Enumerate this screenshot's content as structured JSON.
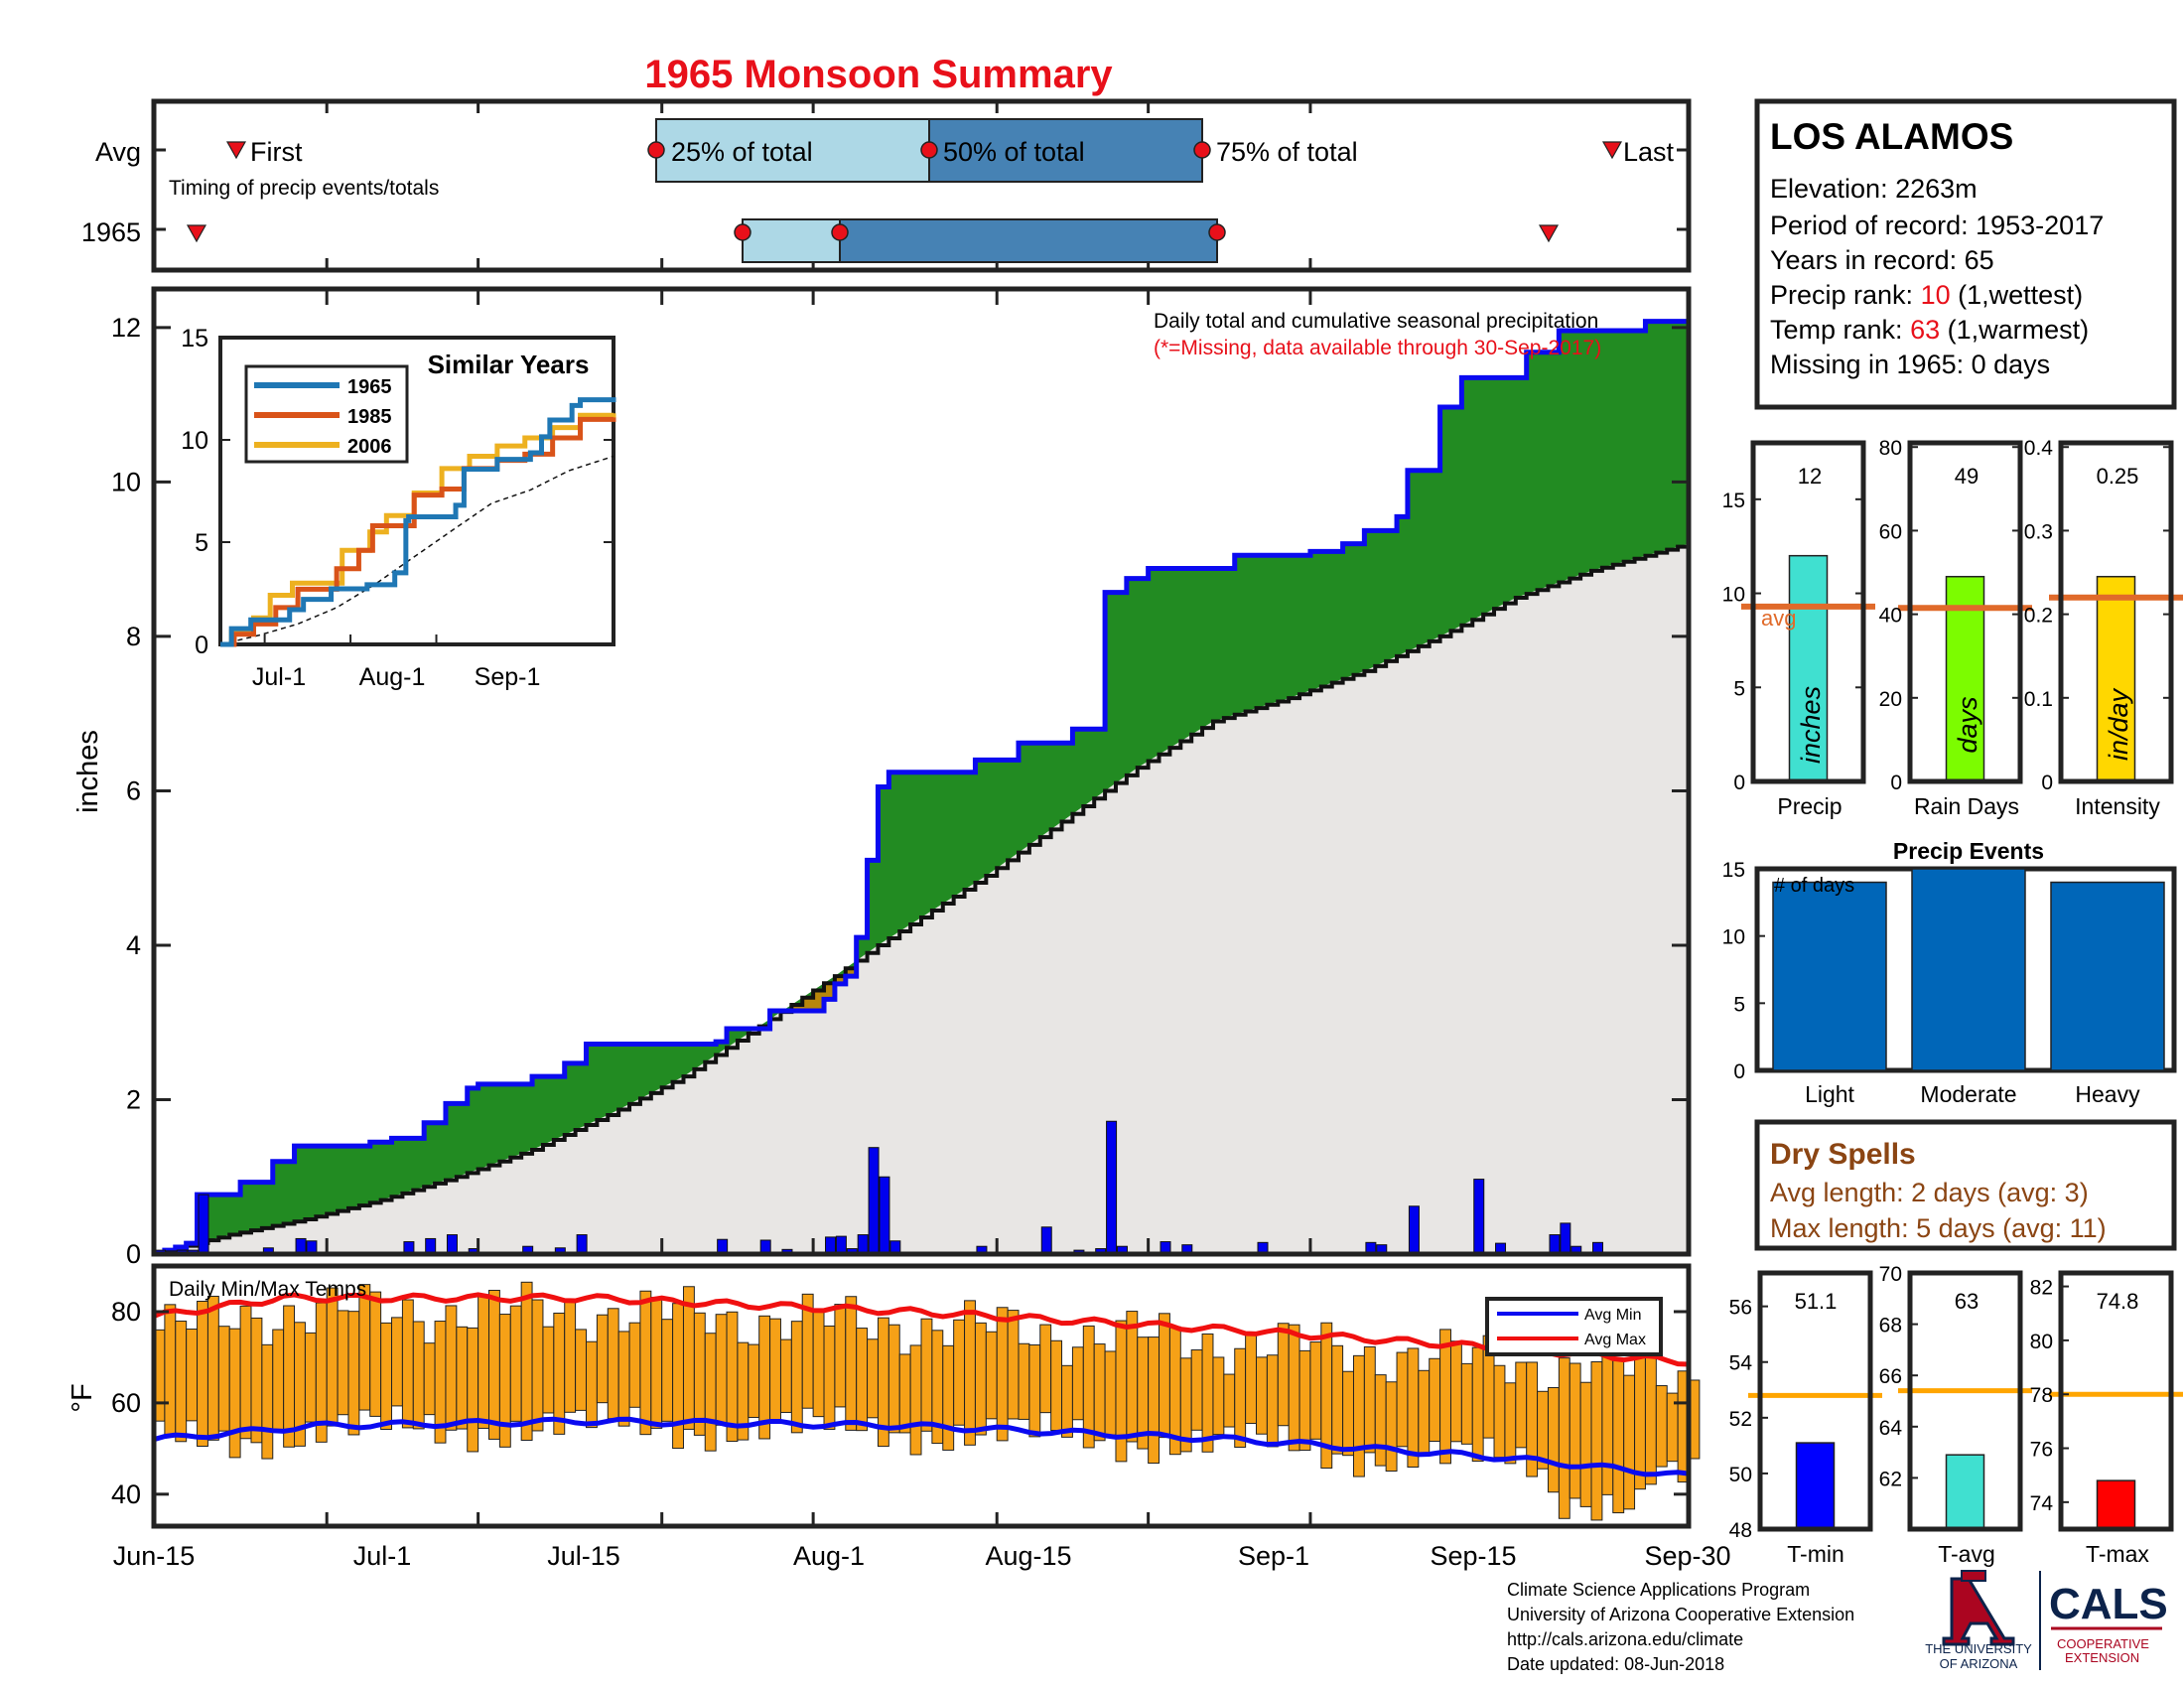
{
  "title": "1965 Monsoon Summary",
  "timing": {
    "avg_label": "Avg",
    "year_label": "1965",
    "caption": "Timing of precip events/totals",
    "first_label": "First",
    "last_label": "Last",
    "q25_label": "25% of total",
    "q50_label": "50% of total",
    "q75_label": "75% of total"
  },
  "main": {
    "ylabel": "inches",
    "title_line1": "Daily total and cumulative seasonal precipitation",
    "title_line2": "(*=Missing, data available through 30-Sep-2017)"
  },
  "inset": {
    "title": "Similar Years",
    "legend": [
      "1965",
      "1985",
      "2006"
    ],
    "x_ticks": [
      "Jul-1",
      "Aug-1",
      "Sep-1"
    ]
  },
  "temps": {
    "label": "Daily Min/Max Temps",
    "ylabel": "°F",
    "legend_min": "Avg Min",
    "legend_max": "Avg Max"
  },
  "x_ticks": [
    "Jun-15",
    "Jul-1",
    "Jul-15",
    "Aug-1",
    "Aug-15",
    "Sep-1",
    "Sep-15",
    "Sep-30"
  ],
  "station": {
    "name": "LOS ALAMOS",
    "elevation": "Elevation: 2263m",
    "period": "Period of record: 1953-2017",
    "years": "Years in record: 65",
    "precip_rank_pre": "Precip rank: ",
    "precip_rank_val": "10",
    "precip_rank_post": " (1,wettest)",
    "temp_rank_pre": "Temp rank: ",
    "temp_rank_val": "63",
    "temp_rank_post": " (1,warmest)",
    "missing": "Missing in 1965: 0 days"
  },
  "summary_bars": [
    {
      "label": "Precip",
      "value_text": "12",
      "unit": "inches",
      "color": "#40E0D0",
      "value": 12,
      "avg": 9.3,
      "ylim": [
        0,
        18
      ],
      "ticks": [
        "0",
        "5",
        "10",
        "15"
      ],
      "avg_text": "avg"
    },
    {
      "label": "Rain Days",
      "value_text": "49",
      "unit": "days",
      "color": "#7CFC00",
      "value": 49,
      "avg": 41.5,
      "ylim": [
        0,
        81
      ],
      "ticks": [
        "0",
        "20",
        "40",
        "60",
        "80"
      ]
    },
    {
      "label": "Intensity",
      "value_text": "0.25",
      "unit": "in/day",
      "color": "#FFD700",
      "value": 0.245,
      "avg": 0.22,
      "ylim": [
        0,
        0.405
      ],
      "ticks": [
        "0",
        "0.1",
        "0.2",
        "0.3",
        "0.4"
      ]
    }
  ],
  "precip_events": {
    "title": "Precip Events",
    "ylabel": "# of days",
    "categories": [
      "Light",
      "Moderate",
      "Heavy"
    ],
    "values": [
      14,
      15,
      14
    ],
    "ylim": [
      0,
      15
    ],
    "ticks": [
      "0",
      "5",
      "10",
      "15"
    ]
  },
  "dry_spells": {
    "title": "Dry Spells",
    "avg_length": "Avg length: 2 days (avg: 3)",
    "max_length": "Max length: 5 days (avg: 11)"
  },
  "temp_bars": [
    {
      "label": "T-min",
      "value_text": "51.1",
      "color": "#0000FF",
      "value": 51.1,
      "avg": 52.8,
      "ylim": [
        48,
        57.2
      ],
      "ticks": [
        "48",
        "50",
        "52",
        "54",
        "56"
      ]
    },
    {
      "label": "T-avg",
      "value_text": "63",
      "color": "#40E0D0",
      "value": 62.9,
      "avg": 65.4,
      "ylim": [
        60,
        70
      ],
      "ticks": [
        "62",
        "64",
        "66",
        "68",
        "70"
      ]
    },
    {
      "label": "T-max",
      "value_text": "74.8",
      "color": "#FF0000",
      "value": 74.8,
      "avg": 78,
      "ylim": [
        73,
        82.5
      ],
      "ticks": [
        "74",
        "76",
        "78",
        "80",
        "82"
      ]
    }
  ],
  "footer": {
    "line1": "Climate Science Applications Program",
    "line2": "University of Arizona Cooperative Extension",
    "line3": "http://cals.arizona.edu/climate",
    "line4": " Date updated: 08-Jun-2018",
    "ua_line1": "THE UNIVERSITY",
    "ua_line2": "OF ARIZONA",
    "cals": "CALS",
    "coop1": "COOPERATIVE",
    "coop2": "EXTENSION"
  },
  "colors": {
    "title_red": "#E8101A",
    "frame": "#222222",
    "actual_line": "#0A0AF0",
    "surplus_fill": "#228B22",
    "normal_fill": "#E8E6E4",
    "temp_bar": "#F6A117",
    "avg_line": "#E06A2A",
    "brown_text": "#8B4513",
    "event_bar": "#0066B8",
    "ua_blue": "#0C234B",
    "ua_red": "#AB0520"
  },
  "chart_data": [
    {
      "type": "line",
      "title": "Daily total and cumulative seasonal precipitation",
      "ylabel": "inches",
      "xlabel": "",
      "x_range": [
        "Jun-15",
        "Sep-30"
      ],
      "ylim": [
        0,
        12.5
      ],
      "series": [
        {
          "name": "1965",
          "points": [
            [
              0,
              0
            ],
            [
              1,
              0.05
            ],
            [
              2,
              0.09
            ],
            [
              3,
              0.14
            ],
            [
              4,
              0.77
            ],
            [
              8,
              0.93
            ],
            [
              11,
              1.2
            ],
            [
              13,
              1.4
            ],
            [
              20,
              1.45
            ],
            [
              22,
              1.5
            ],
            [
              25,
              1.7
            ],
            [
              27,
              1.95
            ],
            [
              29,
              2.15
            ],
            [
              30,
              2.2
            ],
            [
              35,
              2.3
            ],
            [
              38,
              2.47
            ],
            [
              40,
              2.72
            ],
            [
              52,
              2.75
            ],
            [
              53,
              2.92
            ],
            [
              57,
              3.15
            ],
            [
              62,
              3.3
            ],
            [
              63,
              3.5
            ],
            [
              64,
              3.6
            ],
            [
              65,
              4.1
            ],
            [
              66,
              5.1
            ],
            [
              67,
              6.05
            ],
            [
              68,
              6.24
            ],
            [
              76,
              6.4
            ],
            [
              80,
              6.62
            ],
            [
              85,
              6.8
            ],
            [
              88,
              8.57
            ],
            [
              90,
              8.75
            ],
            [
              92,
              8.88
            ],
            [
              100,
              9.05
            ],
            [
              107,
              9.1
            ],
            [
              110,
              9.2
            ],
            [
              112,
              9.37
            ],
            [
              115,
              9.55
            ],
            [
              116,
              10.15
            ],
            [
              119,
              10.97
            ],
            [
              121,
              11.35
            ],
            [
              127,
              11.68
            ],
            [
              130,
              11.96
            ],
            [
              138,
              12.08
            ],
            [
              142,
              12.08
            ]
          ]
        },
        {
          "name": "Average",
          "points": [
            [
              0,
              0
            ],
            [
              7,
              0.25
            ],
            [
              14,
              0.45
            ],
            [
              21,
              0.7
            ],
            [
              28,
              1.0
            ],
            [
              35,
              1.35
            ],
            [
              42,
              1.8
            ],
            [
              49,
              2.3
            ],
            [
              56,
              2.95
            ],
            [
              63,
              3.6
            ],
            [
              67,
              4.0
            ],
            [
              72,
              4.45
            ],
            [
              77,
              4.9
            ],
            [
              84,
              5.6
            ],
            [
              91,
              6.3
            ],
            [
              98,
              6.9
            ],
            [
              105,
              7.2
            ],
            [
              112,
              7.55
            ],
            [
              119,
              8.0
            ],
            [
              126,
              8.5
            ],
            [
              133,
              8.85
            ],
            [
              142,
              9.2
            ]
          ]
        }
      ],
      "daily_precip": [
        [
          0,
          0.05
        ],
        [
          1,
          0.04
        ],
        [
          2,
          0.05
        ],
        [
          3,
          0.05
        ],
        [
          4,
          0.77
        ],
        [
          5,
          0.02
        ],
        [
          10,
          0.08
        ],
        [
          13,
          0.2
        ],
        [
          14,
          0.17
        ],
        [
          23,
          0.16
        ],
        [
          25,
          0.2
        ],
        [
          27,
          0.25
        ],
        [
          29,
          0.07
        ],
        [
          34,
          0.1
        ],
        [
          37,
          0.08
        ],
        [
          39,
          0.25
        ],
        [
          52,
          0.19
        ],
        [
          56,
          0.18
        ],
        [
          58,
          0.06
        ],
        [
          62,
          0.22
        ],
        [
          63,
          0.23
        ],
        [
          64,
          0.07
        ],
        [
          65,
          0.25
        ],
        [
          66,
          1.38
        ],
        [
          67,
          1.0
        ],
        [
          68,
          0.17
        ],
        [
          76,
          0.1
        ],
        [
          82,
          0.35
        ],
        [
          85,
          0.05
        ],
        [
          87,
          0.07
        ],
        [
          88,
          1.72
        ],
        [
          89,
          0.1
        ],
        [
          93,
          0.16
        ],
        [
          95,
          0.12
        ],
        [
          102,
          0.15
        ],
        [
          112,
          0.15
        ],
        [
          113,
          0.12
        ],
        [
          116,
          0.62
        ],
        [
          122,
          0.97
        ],
        [
          124,
          0.14
        ],
        [
          129,
          0.25
        ],
        [
          130,
          0.4
        ],
        [
          131,
          0.1
        ],
        [
          133,
          0.15
        ]
      ]
    },
    {
      "type": "bar",
      "title": "Similar Years",
      "x_ticks": [
        "Jul-1",
        "Aug-1",
        "Sep-1"
      ],
      "ylim": [
        0,
        15
      ],
      "series": [
        {
          "name": "1965",
          "points": [
            [
              0,
              0
            ],
            [
              4,
              0.77
            ],
            [
              11,
              1.2
            ],
            [
              25,
              1.7
            ],
            [
              30,
              2.2
            ],
            [
              40,
              2.72
            ],
            [
              53,
              2.92
            ],
            [
              63,
              3.5
            ],
            [
              67,
              6.05
            ],
            [
              68,
              6.24
            ],
            [
              85,
              6.8
            ],
            [
              88,
              8.57
            ],
            [
              100,
              9.05
            ],
            [
              112,
              9.37
            ],
            [
              116,
              10.15
            ],
            [
              119,
              10.97
            ],
            [
              127,
              11.68
            ],
            [
              130,
              11.96
            ],
            [
              142,
              12.08
            ]
          ]
        },
        {
          "name": "1985",
          "points": [
            [
              0,
              0
            ],
            [
              5,
              0.5
            ],
            [
              12,
              1.0
            ],
            [
              20,
              1.8
            ],
            [
              28,
              2.7
            ],
            [
              35,
              2.7
            ],
            [
              42,
              3.7
            ],
            [
              50,
              4.6
            ],
            [
              55,
              5.8
            ],
            [
              60,
              5.8
            ],
            [
              70,
              7.3
            ],
            [
              80,
              7.6
            ],
            [
              88,
              8.6
            ],
            [
              100,
              9.0
            ],
            [
              110,
              9.3
            ],
            [
              120,
              10.1
            ],
            [
              130,
              11.0
            ],
            [
              142,
              11.1
            ]
          ]
        },
        {
          "name": "2006",
          "points": [
            [
              0,
              0
            ],
            [
              4,
              0.6
            ],
            [
              12,
              1.3
            ],
            [
              18,
              2.4
            ],
            [
              26,
              3.0
            ],
            [
              36,
              3.0
            ],
            [
              44,
              4.6
            ],
            [
              54,
              5.5
            ],
            [
              60,
              6.3
            ],
            [
              70,
              7.4
            ],
            [
              80,
              8.6
            ],
            [
              90,
              9.2
            ],
            [
              100,
              9.7
            ],
            [
              110,
              10.1
            ],
            [
              120,
              10.6
            ],
            [
              130,
              11.2
            ],
            [
              142,
              11.3
            ]
          ]
        },
        {
          "name": "Average",
          "points": [
            [
              0,
              0
            ],
            [
              14,
              0.45
            ],
            [
              28,
              1.0
            ],
            [
              42,
              1.8
            ],
            [
              56,
              2.95
            ],
            [
              67,
              4.0
            ],
            [
              84,
              5.6
            ],
            [
              98,
              6.9
            ],
            [
              112,
              7.55
            ],
            [
              126,
              8.5
            ],
            [
              142,
              9.2
            ]
          ]
        }
      ]
    },
    {
      "type": "bar",
      "title": "Daily Min/Max Temps",
      "ylabel": "°F",
      "ylim": [
        33,
        90
      ],
      "series": [
        {
          "name": "Avg Min",
          "points": [
            [
              0,
              52
            ],
            [
              15,
              55
            ],
            [
              40,
              56
            ],
            [
              70,
              55
            ],
            [
              100,
              52
            ],
            [
              125,
              48
            ],
            [
              142,
              44
            ]
          ]
        },
        {
          "name": "Avg Max",
          "points": [
            [
              0,
              79
            ],
            [
              12,
              83
            ],
            [
              40,
              83
            ],
            [
              70,
              80
            ],
            [
              100,
              76
            ],
            [
              125,
              72
            ],
            [
              142,
              69
            ]
          ]
        }
      ]
    }
  ]
}
